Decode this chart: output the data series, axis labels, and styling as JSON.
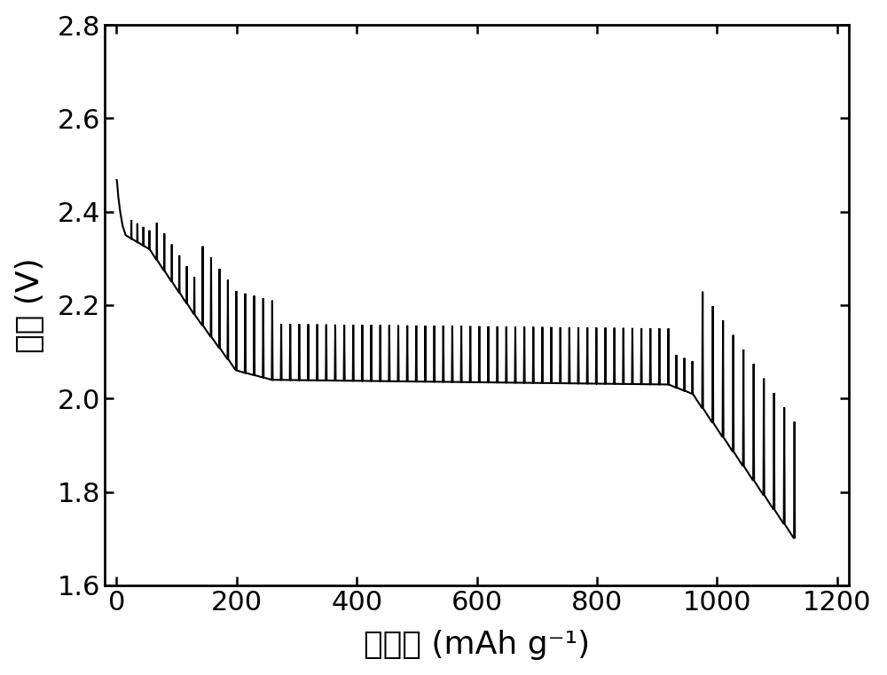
{
  "xlabel": "比容量 (mAh g⁻¹)",
  "ylabel": "电压 (V)",
  "xlim": [
    -20,
    1220
  ],
  "ylim": [
    1.6,
    2.8
  ],
  "xticks": [
    0,
    200,
    400,
    600,
    800,
    1000,
    1200
  ],
  "yticks": [
    1.6,
    1.8,
    2.0,
    2.2,
    2.4,
    2.6,
    2.8
  ],
  "line_color": "#000000",
  "line_width": 1.5,
  "background_color": "#ffffff",
  "figsize": [
    10.0,
    7.61
  ],
  "dpi": 100,
  "tick_fontsize": 22,
  "label_fontsize": 26,
  "spine_linewidth": 2.0
}
